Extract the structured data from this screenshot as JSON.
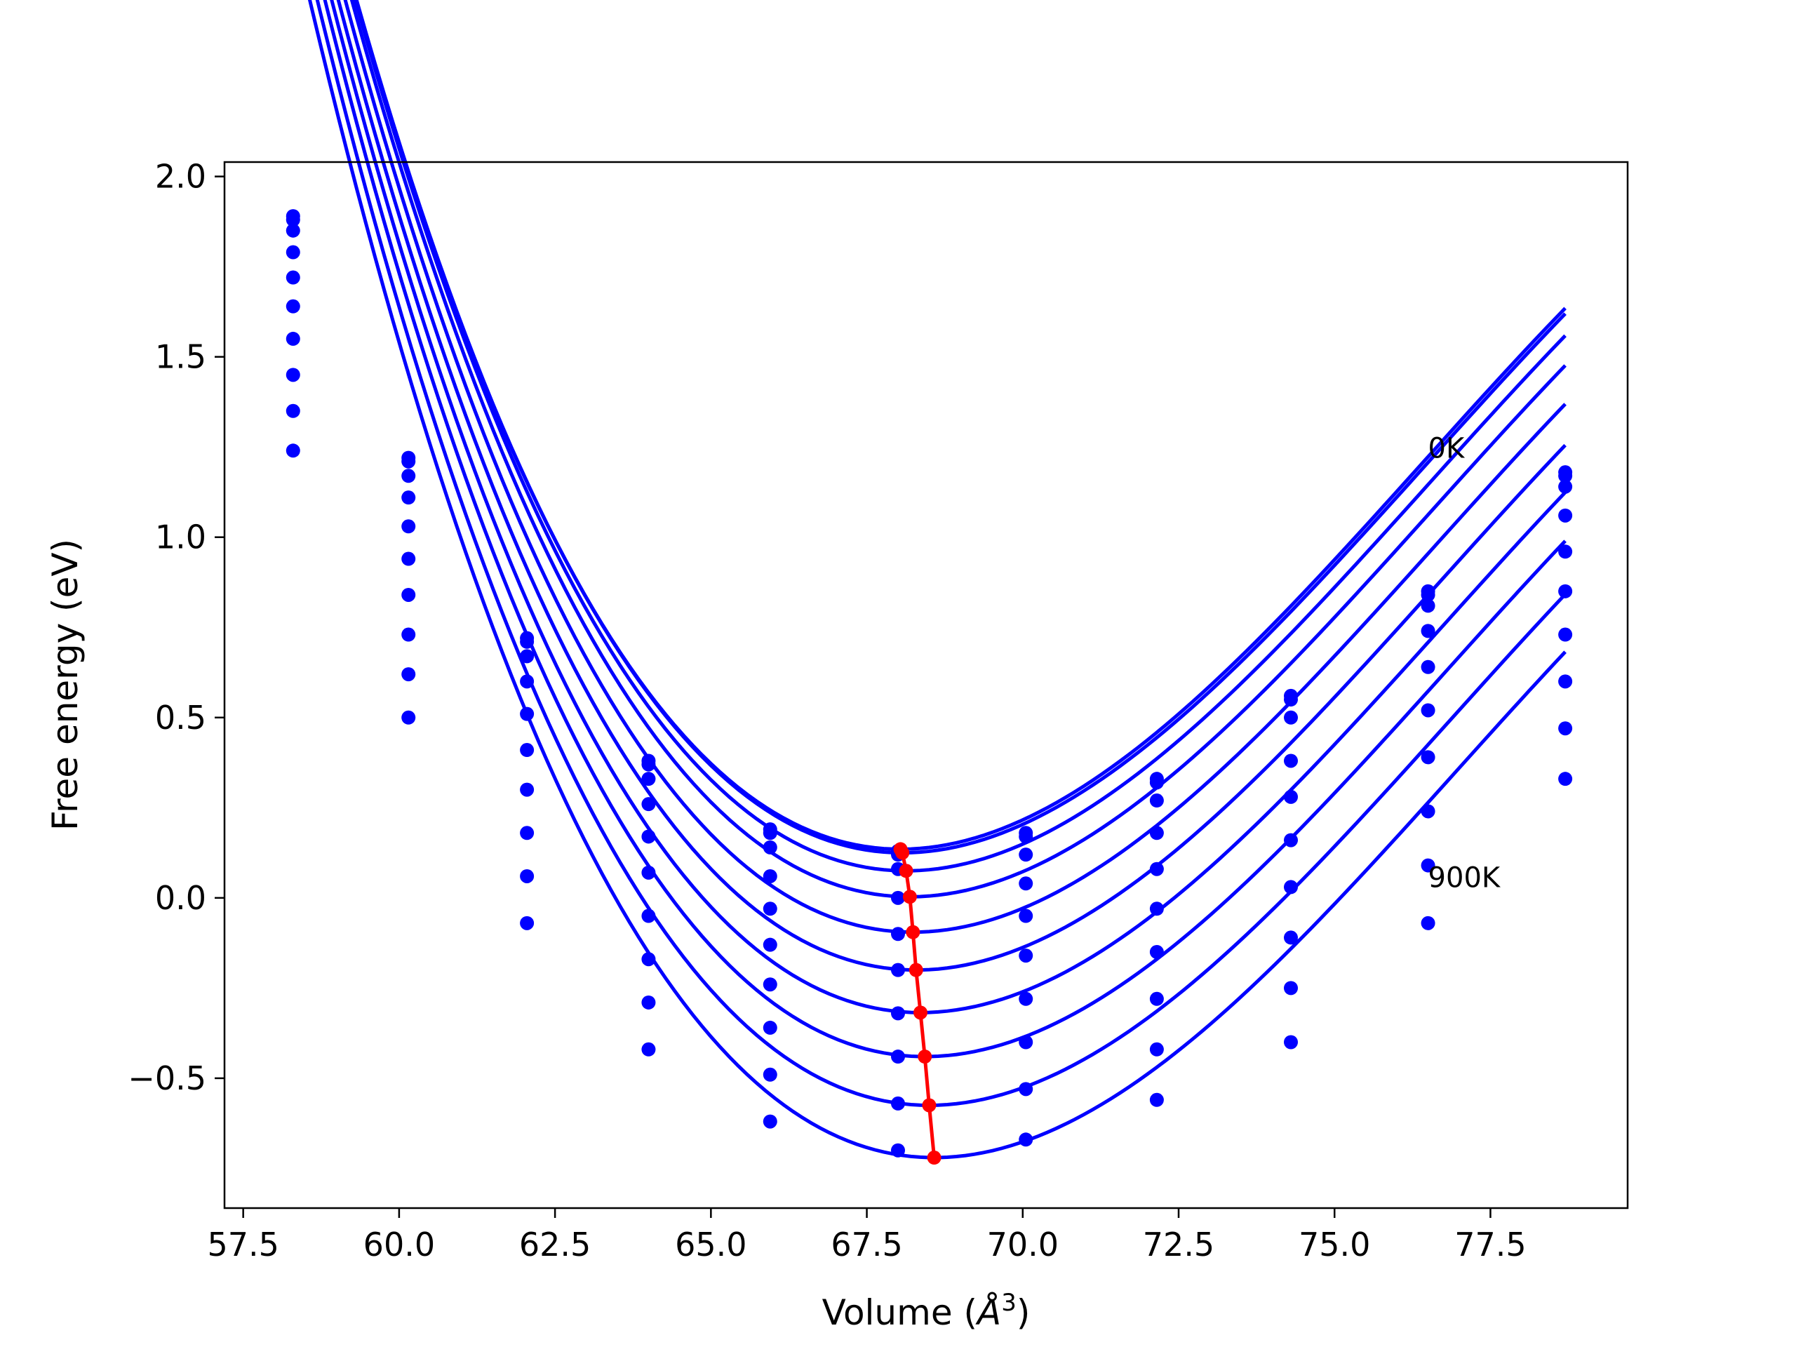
{
  "chart_data": {
    "type": "line",
    "xlabel": "Volume (Å³)",
    "xlabel_parts": {
      "main": "Volume (",
      "symbol": "Å",
      "exponent": "3",
      "close": ")"
    },
    "ylabel": "Free energy (eV)",
    "xlim": [
      57.2,
      79.7
    ],
    "ylim": [
      -0.86,
      2.04
    ],
    "x_ticks": [
      57.5,
      60.0,
      62.5,
      65.0,
      67.5,
      70.0,
      72.5,
      75.0,
      77.5
    ],
    "x_tick_labels": [
      "57.5",
      "60.0",
      "62.5",
      "65.0",
      "67.5",
      "70.0",
      "72.5",
      "75.0",
      "77.5"
    ],
    "y_ticks": [
      -0.5,
      0.0,
      0.5,
      1.0,
      1.5,
      2.0
    ],
    "y_tick_labels": [
      "−0.5",
      "0.0",
      "0.5",
      "1.0",
      "1.5",
      "2.0"
    ],
    "grid": false,
    "legend": "none",
    "annotations": [
      {
        "text": "0K",
        "x": 76.5,
        "y": 1.22
      },
      {
        "text": "900K",
        "x": 76.5,
        "y": 0.03
      }
    ],
    "volumes": [
      58.3,
      60.15,
      62.05,
      64.0,
      65.95,
      68.0,
      70.05,
      72.15,
      74.3,
      76.5,
      78.7
    ],
    "series": [
      {
        "points": [
          1.89,
          1.22,
          0.72,
          0.38,
          0.19,
          0.13,
          0.18,
          0.33,
          0.56,
          0.85,
          1.18
        ],
        "fit": {
          "v0": 68.04,
          "e0": 0.135,
          "a": 0.0229,
          "b": 0.00091
        }
      },
      {
        "points": [
          1.88,
          1.21,
          0.71,
          0.37,
          0.18,
          0.12,
          0.17,
          0.32,
          0.55,
          0.84,
          1.17
        ],
        "fit": {
          "v0": 68.07,
          "e0": 0.125,
          "a": 0.0229,
          "b": 0.00091
        }
      },
      {
        "points": [
          1.85,
          1.17,
          0.67,
          0.33,
          0.14,
          0.08,
          0.12,
          0.27,
          0.5,
          0.81,
          1.14
        ],
        "fit": {
          "v0": 68.13,
          "e0": 0.075,
          "a": 0.0229,
          "b": 0.00091
        }
      },
      {
        "points": [
          1.79,
          1.11,
          0.6,
          0.26,
          0.06,
          0.0,
          0.04,
          0.18,
          0.38,
          0.74,
          1.06
        ],
        "fit": {
          "v0": 68.19,
          "e0": 0.003,
          "a": 0.0229,
          "b": 0.00091
        }
      },
      {
        "points": [
          1.72,
          1.03,
          0.51,
          0.17,
          -0.03,
          -0.1,
          -0.05,
          0.08,
          0.28,
          0.64,
          0.96
        ],
        "fit": {
          "v0": 68.24,
          "e0": -0.095,
          "a": 0.0229,
          "b": 0.00091
        }
      },
      {
        "points": [
          1.64,
          0.94,
          0.41,
          0.07,
          -0.13,
          -0.2,
          -0.16,
          -0.03,
          0.16,
          0.52,
          0.85
        ],
        "fit": {
          "v0": 68.29,
          "e0": -0.2,
          "a": 0.0229,
          "b": 0.00091
        }
      },
      {
        "points": [
          1.55,
          0.84,
          0.3,
          -0.05,
          -0.24,
          -0.32,
          -0.28,
          -0.15,
          0.03,
          0.39,
          0.73
        ],
        "fit": {
          "v0": 68.36,
          "e0": -0.318,
          "a": 0.0229,
          "b": 0.00091
        }
      },
      {
        "points": [
          1.45,
          0.73,
          0.18,
          -0.17,
          -0.36,
          -0.44,
          -0.4,
          -0.28,
          -0.11,
          0.24,
          0.6
        ],
        "fit": {
          "v0": 68.43,
          "e0": -0.44,
          "a": 0.0229,
          "b": 0.00091
        }
      },
      {
        "points": [
          1.35,
          0.62,
          0.06,
          -0.29,
          -0.49,
          -0.57,
          -0.53,
          -0.42,
          -0.25,
          0.09,
          0.47
        ],
        "fit": {
          "v0": 68.5,
          "e0": -0.575,
          "a": 0.0229,
          "b": 0.00091
        }
      },
      {
        "points": [
          1.24,
          0.5,
          -0.07,
          -0.42,
          -0.62,
          -0.7,
          -0.67,
          -0.56,
          -0.4,
          -0.07,
          0.33
        ],
        "fit": {
          "v0": 68.58,
          "e0": -0.72,
          "a": 0.0229,
          "b": 0.00091
        }
      }
    ],
    "minima": {
      "x": [
        68.04,
        68.07,
        68.13,
        68.19,
        68.24,
        68.29,
        68.36,
        68.43,
        68.5,
        68.58
      ],
      "y": [
        0.135,
        0.125,
        0.075,
        0.003,
        -0.095,
        -0.2,
        -0.318,
        -0.44,
        -0.575,
        -0.72
      ]
    },
    "colors": {
      "series": "#0000ff",
      "minima": "#ff0000",
      "axes": "#000000"
    }
  }
}
